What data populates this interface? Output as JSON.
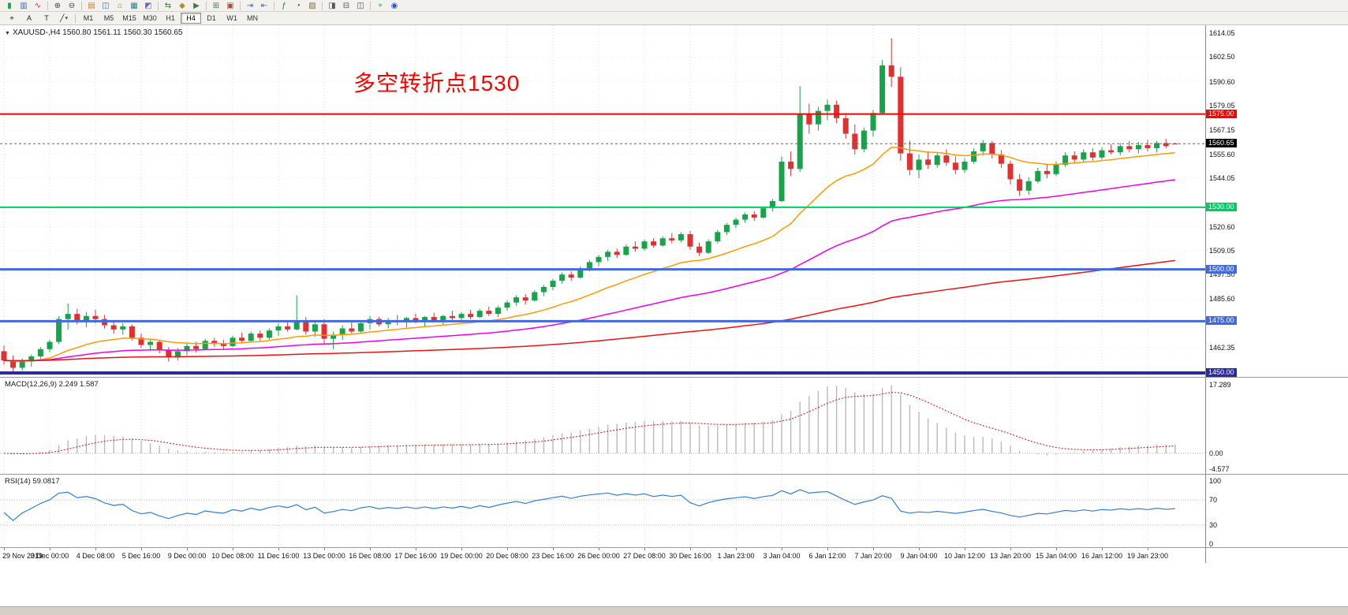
{
  "toolbar_row1": {
    "items": [
      {
        "name": "candlestick-chart-icon",
        "glyph": "▮",
        "color": "#1e9e4a"
      },
      {
        "name": "bar-chart-icon",
        "glyph": "▥",
        "color": "#3b6ea5"
      },
      {
        "name": "line-chart-icon",
        "glyph": "∿",
        "color": "#c03a2b"
      },
      {
        "name": "separator"
      },
      {
        "name": "zoom-in-icon",
        "glyph": "⊕",
        "color": "#444444"
      },
      {
        "name": "zoom-out-icon",
        "glyph": "⊖",
        "color": "#444444"
      },
      {
        "name": "separator"
      },
      {
        "name": "market-watch-icon",
        "glyph": "▤",
        "color": "#c87f2f"
      },
      {
        "name": "data-window-icon",
        "glyph": "◫",
        "color": "#3b6ea5"
      },
      {
        "name": "navigator-icon",
        "glyph": "⌂",
        "color": "#8a7a2a"
      },
      {
        "name": "terminal-icon",
        "glyph": "▦",
        "color": "#2f7f7f"
      },
      {
        "name": "strategy-tester-icon",
        "glyph": "◩",
        "color": "#7f5fae"
      },
      {
        "name": "separator"
      },
      {
        "name": "new-order-icon",
        "glyph": "⇆",
        "color": "#2e7d32"
      },
      {
        "name": "metaeditor-icon",
        "glyph": "◆",
        "color": "#b58a2a"
      },
      {
        "name": "autotrading-icon",
        "glyph": "▶",
        "color": "#3a7d44"
      },
      {
        "name": "separator"
      },
      {
        "name": "new-chart-icon",
        "glyph": "⊞",
        "color": "#3f7f3f"
      },
      {
        "name": "profiles-icon",
        "glyph": "▣",
        "color": "#a0522d"
      },
      {
        "name": "separator"
      },
      {
        "name": "auto-scroll-icon",
        "glyph": "⇥",
        "color": "#3b6ea5"
      },
      {
        "name": "chart-shift-icon",
        "glyph": "⇤",
        "color": "#3b6ea5"
      },
      {
        "name": "separator"
      },
      {
        "name": "indicators-icon",
        "glyph": "ƒ",
        "color": "#1e7d46"
      },
      {
        "name": "periods-icon",
        "glyph": "◔",
        "color": "#444444"
      },
      {
        "name": "templates-icon",
        "glyph": "▨",
        "color": "#8a6d3b"
      },
      {
        "name": "separator"
      },
      {
        "name": "cascade-windows-icon",
        "glyph": "◨",
        "color": "#555555"
      },
      {
        "name": "tile-horizontally-icon",
        "glyph": "⊟",
        "color": "#555555"
      },
      {
        "name": "tile-vertically-icon",
        "glyph": "◫",
        "color": "#555555"
      },
      {
        "name": "separator"
      },
      {
        "name": "add-indicator-icon",
        "glyph": "+",
        "color": "#1e9e4a"
      },
      {
        "name": "help-icon",
        "glyph": "◉",
        "color": "#2255cc"
      }
    ]
  },
  "toolbar_row2": {
    "tools": [
      {
        "name": "cursor-tool",
        "glyph": "⌖"
      },
      {
        "name": "text-label-tool",
        "glyph": "A"
      },
      {
        "name": "text-tool",
        "glyph": "T"
      },
      {
        "name": "shapes-dropdown",
        "glyph": "╱",
        "caret": "▾"
      }
    ],
    "timeframes": [
      "M1",
      "M5",
      "M15",
      "M30",
      "H1",
      "H4",
      "D1",
      "W1",
      "MN"
    ],
    "active_timeframe": "H4"
  },
  "chart": {
    "symbol_info": "XAUUSD-,H4 1560.80 1561.11 1560.30 1560.65",
    "annotation": {
      "text": "多空转折点1530",
      "color": "#fe0000"
    },
    "candle_colors": {
      "up": "#18a34a",
      "down": "#e03131"
    },
    "price_axis": {
      "ticks": [
        "1614.05",
        "1602.50",
        "1590.60",
        "1579.05",
        "1567.15",
        "1555.60",
        "1544.05",
        "1520.60",
        "1509.05",
        "1497.50",
        "1485.60",
        "1462.35"
      ],
      "current": {
        "value": "1560.65",
        "price": 1560.65,
        "bg": "#000000"
      }
    },
    "hlines": [
      {
        "price": 1575.0,
        "label": "1575.00",
        "color": "#ff0000",
        "width": 2
      },
      {
        "price": 1530.0,
        "label": "1530.00",
        "color": "#00cc66",
        "width": 2
      },
      {
        "price": 1500.0,
        "label": "1500.00",
        "color": "#4169e1",
        "width": 3
      },
      {
        "price": 1475.0,
        "label": "1475.00",
        "color": "#4169e1",
        "width": 3
      },
      {
        "price": 1450.0,
        "label": "1450.00",
        "color": "#2a2aa8",
        "width": 4
      }
    ]
  },
  "chart_data": {
    "type": "candlestick",
    "symbol": "XAUUSD-",
    "timeframe": "H4",
    "y_axis": {
      "max": 1617.86,
      "min": 1448.1
    },
    "time_labels": [
      "29 Nov 2019",
      "3 Dec 00:00",
      "4 Dec 08:00",
      "5 Dec 16:00",
      "9 Dec 00:00",
      "10 Dec 08:00",
      "11 Dec 16:00",
      "13 Dec 00:00",
      "16 Dec 08:00",
      "17 Dec 16:00",
      "19 Dec 00:00",
      "20 Dec 08:00",
      "23 Dec 16:00",
      "26 Dec 00:00",
      "27 Dec 08:00",
      "30 Dec 16:00",
      "1 Jan 23:00",
      "3 Jan 04:00",
      "6 Jan 12:00",
      "7 Jan 20:00",
      "9 Jan 04:00",
      "10 Jan 12:00",
      "13 Jan 20:00",
      "15 Jan 04:00",
      "16 Jan 12:00",
      "19 Jan 23:00"
    ],
    "ohlc": [
      [
        1460.5,
        1463.2,
        1454.0,
        1456.0
      ],
      [
        1456.0,
        1458.5,
        1450.2,
        1452.5
      ],
      [
        1452.5,
        1457.0,
        1451.0,
        1455.5
      ],
      [
        1455.5,
        1459.0,
        1453.0,
        1458.0
      ],
      [
        1458.0,
        1462.5,
        1456.5,
        1461.5
      ],
      [
        1461.5,
        1466.0,
        1460.0,
        1465.0
      ],
      [
        1465.0,
        1477.5,
        1464.0,
        1476.0
      ],
      [
        1476.0,
        1483.5,
        1471.0,
        1478.5
      ],
      [
        1478.5,
        1481.0,
        1473.5,
        1475.0
      ],
      [
        1475.0,
        1479.5,
        1472.0,
        1477.5
      ],
      [
        1477.5,
        1480.5,
        1474.0,
        1476.0
      ],
      [
        1476.0,
        1478.0,
        1471.5,
        1473.0
      ],
      [
        1473.0,
        1475.5,
        1469.0,
        1471.0
      ],
      [
        1471.0,
        1474.0,
        1468.5,
        1472.5
      ],
      [
        1472.5,
        1473.5,
        1465.5,
        1467.0
      ],
      [
        1467.0,
        1469.0,
        1462.0,
        1463.5
      ],
      [
        1463.5,
        1466.5,
        1460.5,
        1465.0
      ],
      [
        1465.0,
        1466.0,
        1459.5,
        1461.0
      ],
      [
        1461.0,
        1462.5,
        1455.5,
        1457.5
      ],
      [
        1457.5,
        1462.0,
        1456.0,
        1460.5
      ],
      [
        1460.5,
        1464.5,
        1458.5,
        1463.0
      ],
      [
        1463.0,
        1465.0,
        1460.0,
        1461.5
      ],
      [
        1461.5,
        1466.5,
        1461.0,
        1465.5
      ],
      [
        1465.5,
        1467.0,
        1462.5,
        1464.0
      ],
      [
        1464.0,
        1466.0,
        1461.5,
        1463.0
      ],
      [
        1463.0,
        1468.0,
        1462.5,
        1467.0
      ],
      [
        1467.0,
        1469.5,
        1464.5,
        1465.5
      ],
      [
        1465.5,
        1470.0,
        1465.0,
        1469.0
      ],
      [
        1469.0,
        1470.5,
        1465.5,
        1467.0
      ],
      [
        1467.0,
        1471.5,
        1466.0,
        1470.5
      ],
      [
        1470.5,
        1474.0,
        1468.0,
        1472.5
      ],
      [
        1472.5,
        1475.5,
        1470.0,
        1471.0
      ],
      [
        1471.0,
        1487.5,
        1470.5,
        1475.0
      ],
      [
        1475.0,
        1477.0,
        1468.5,
        1470.0
      ],
      [
        1470.0,
        1474.5,
        1467.5,
        1473.5
      ],
      [
        1473.5,
        1476.0,
        1464.0,
        1466.5
      ],
      [
        1466.5,
        1470.0,
        1461.5,
        1468.5
      ],
      [
        1468.5,
        1473.0,
        1466.0,
        1471.5
      ],
      [
        1471.5,
        1474.5,
        1469.0,
        1470.0
      ],
      [
        1470.0,
        1475.0,
        1469.5,
        1474.0
      ],
      [
        1474.0,
        1477.5,
        1471.0,
        1476.0
      ],
      [
        1476.0,
        1477.0,
        1472.5,
        1473.5
      ],
      [
        1473.5,
        1476.5,
        1471.5,
        1475.5
      ],
      [
        1475.5,
        1478.0,
        1473.0,
        1474.5
      ],
      [
        1474.5,
        1477.0,
        1472.0,
        1476.5
      ],
      [
        1476.5,
        1478.5,
        1474.0,
        1475.0
      ],
      [
        1475.0,
        1477.5,
        1472.5,
        1477.0
      ],
      [
        1477.0,
        1479.0,
        1474.5,
        1475.5
      ],
      [
        1475.5,
        1478.0,
        1473.5,
        1477.5
      ],
      [
        1477.5,
        1480.0,
        1475.0,
        1476.5
      ],
      [
        1476.5,
        1479.5,
        1474.5,
        1478.5
      ],
      [
        1478.5,
        1480.5,
        1476.0,
        1477.0
      ],
      [
        1477.0,
        1481.0,
        1476.5,
        1480.0
      ],
      [
        1480.0,
        1482.0,
        1477.5,
        1478.5
      ],
      [
        1478.5,
        1482.5,
        1477.0,
        1481.5
      ],
      [
        1481.5,
        1485.0,
        1480.0,
        1484.0
      ],
      [
        1484.0,
        1487.5,
        1482.5,
        1486.5
      ],
      [
        1486.5,
        1488.0,
        1483.0,
        1485.0
      ],
      [
        1485.0,
        1490.0,
        1484.5,
        1489.0
      ],
      [
        1489.0,
        1492.5,
        1487.0,
        1491.5
      ],
      [
        1491.5,
        1495.5,
        1490.0,
        1494.5
      ],
      [
        1494.5,
        1498.5,
        1493.0,
        1497.5
      ],
      [
        1497.5,
        1499.0,
        1494.5,
        1496.0
      ],
      [
        1496.0,
        1501.5,
        1495.5,
        1500.5
      ],
      [
        1500.5,
        1504.5,
        1499.0,
        1503.5
      ],
      [
        1503.5,
        1507.0,
        1501.5,
        1506.0
      ],
      [
        1506.0,
        1509.5,
        1504.0,
        1508.5
      ],
      [
        1508.5,
        1510.0,
        1505.5,
        1507.0
      ],
      [
        1507.0,
        1512.0,
        1506.5,
        1511.0
      ],
      [
        1511.0,
        1513.5,
        1508.5,
        1510.0
      ],
      [
        1510.0,
        1514.5,
        1509.0,
        1513.5
      ],
      [
        1513.5,
        1515.0,
        1510.5,
        1511.5
      ],
      [
        1511.5,
        1516.0,
        1511.0,
        1515.0
      ],
      [
        1515.0,
        1517.5,
        1512.5,
        1514.0
      ],
      [
        1514.0,
        1518.0,
        1513.0,
        1517.0
      ],
      [
        1517.0,
        1518.5,
        1509.5,
        1511.0
      ],
      [
        1511.0,
        1513.0,
        1506.5,
        1508.0
      ],
      [
        1508.0,
        1514.5,
        1507.5,
        1513.5
      ],
      [
        1513.5,
        1519.0,
        1512.5,
        1518.0
      ],
      [
        1518.0,
        1522.5,
        1516.5,
        1521.5
      ],
      [
        1521.5,
        1525.0,
        1520.0,
        1524.0
      ],
      [
        1524.0,
        1527.5,
        1522.5,
        1526.5
      ],
      [
        1526.5,
        1528.0,
        1523.5,
        1525.0
      ],
      [
        1525.0,
        1530.5,
        1524.5,
        1529.5
      ],
      [
        1529.5,
        1534.0,
        1528.0,
        1533.0
      ],
      [
        1533.0,
        1554.5,
        1532.5,
        1552.0
      ],
      [
        1552.0,
        1557.0,
        1545.0,
        1548.5
      ],
      [
        1548.5,
        1588.5,
        1547.0,
        1575.0
      ],
      [
        1575.0,
        1580.0,
        1565.5,
        1570.0
      ],
      [
        1570.0,
        1578.5,
        1567.0,
        1576.5
      ],
      [
        1576.5,
        1582.0,
        1572.0,
        1579.5
      ],
      [
        1579.5,
        1581.5,
        1570.5,
        1573.0
      ],
      [
        1573.0,
        1575.5,
        1563.0,
        1565.5
      ],
      [
        1565.5,
        1570.0,
        1555.5,
        1558.0
      ],
      [
        1558.0,
        1568.5,
        1556.5,
        1567.0
      ],
      [
        1567.0,
        1577.0,
        1564.0,
        1575.5
      ],
      [
        1575.5,
        1601.0,
        1574.5,
        1598.5
      ],
      [
        1598.5,
        1611.5,
        1588.0,
        1593.0
      ],
      [
        1593.0,
        1597.5,
        1552.5,
        1556.0
      ],
      [
        1556.0,
        1562.0,
        1545.5,
        1548.0
      ],
      [
        1548.0,
        1555.5,
        1544.0,
        1553.0
      ],
      [
        1553.0,
        1557.0,
        1548.5,
        1550.5
      ],
      [
        1550.5,
        1556.5,
        1549.0,
        1555.0
      ],
      [
        1555.0,
        1558.0,
        1550.0,
        1551.5
      ],
      [
        1551.5,
        1554.5,
        1546.0,
        1548.0
      ],
      [
        1548.0,
        1553.5,
        1546.5,
        1552.0
      ],
      [
        1552.0,
        1558.5,
        1551.0,
        1557.0
      ],
      [
        1557.0,
        1562.5,
        1555.0,
        1561.0
      ],
      [
        1561.0,
        1562.0,
        1553.5,
        1555.5
      ],
      [
        1555.5,
        1557.5,
        1549.0,
        1551.0
      ],
      [
        1551.0,
        1552.5,
        1541.0,
        1543.5
      ],
      [
        1543.5,
        1546.0,
        1535.5,
        1538.0
      ],
      [
        1538.0,
        1544.5,
        1536.0,
        1542.5
      ],
      [
        1542.5,
        1549.0,
        1541.5,
        1547.5
      ],
      [
        1547.5,
        1551.0,
        1544.0,
        1546.0
      ],
      [
        1546.0,
        1552.0,
        1545.0,
        1550.5
      ],
      [
        1550.5,
        1556.5,
        1549.5,
        1555.0
      ],
      [
        1555.0,
        1557.0,
        1551.5,
        1553.0
      ],
      [
        1553.0,
        1558.0,
        1552.0,
        1556.5
      ],
      [
        1556.5,
        1558.5,
        1552.5,
        1554.0
      ],
      [
        1554.0,
        1559.0,
        1553.0,
        1557.5
      ],
      [
        1557.5,
        1560.5,
        1555.5,
        1556.5
      ],
      [
        1556.5,
        1561.0,
        1555.0,
        1559.5
      ],
      [
        1559.5,
        1562.0,
        1556.5,
        1558.0
      ],
      [
        1558.0,
        1561.5,
        1556.0,
        1560.0
      ],
      [
        1560.0,
        1562.5,
        1557.0,
        1558.5
      ],
      [
        1558.5,
        1562.0,
        1556.5,
        1561.0
      ],
      [
        1561.0,
        1563.0,
        1558.5,
        1559.5
      ],
      [
        1560.8,
        1561.11,
        1560.3,
        1560.65
      ]
    ],
    "moving_averages": [
      {
        "name": "ma-fast",
        "period": 20,
        "color": "#ff9900"
      },
      {
        "name": "ma-mid",
        "period": 60,
        "color": "#ee00ee"
      },
      {
        "name": "ma-slow",
        "period": 200,
        "color": "#ee1111"
      }
    ],
    "indicators": {
      "macd": {
        "display": "MACD(12,26,9) 2.249 1.587",
        "label": "MACD(12,26,9)",
        "value_main": "2.249",
        "value_signal": "1.587",
        "fast": 12,
        "slow": 26,
        "signal": 9,
        "axis": [
          "17.289",
          "0.00",
          "-4.577"
        ],
        "histogram_color": "#b9b9b9",
        "signal_color": "#d02020"
      },
      "rsi": {
        "display": "RSI(14) 59.0817",
        "label": "RSI(14)",
        "value": "59.0817",
        "period": 14,
        "axis": [
          "100",
          "70",
          "30",
          "0"
        ],
        "levels": [
          70,
          30
        ],
        "line_color": "#2f7ed8"
      }
    }
  }
}
